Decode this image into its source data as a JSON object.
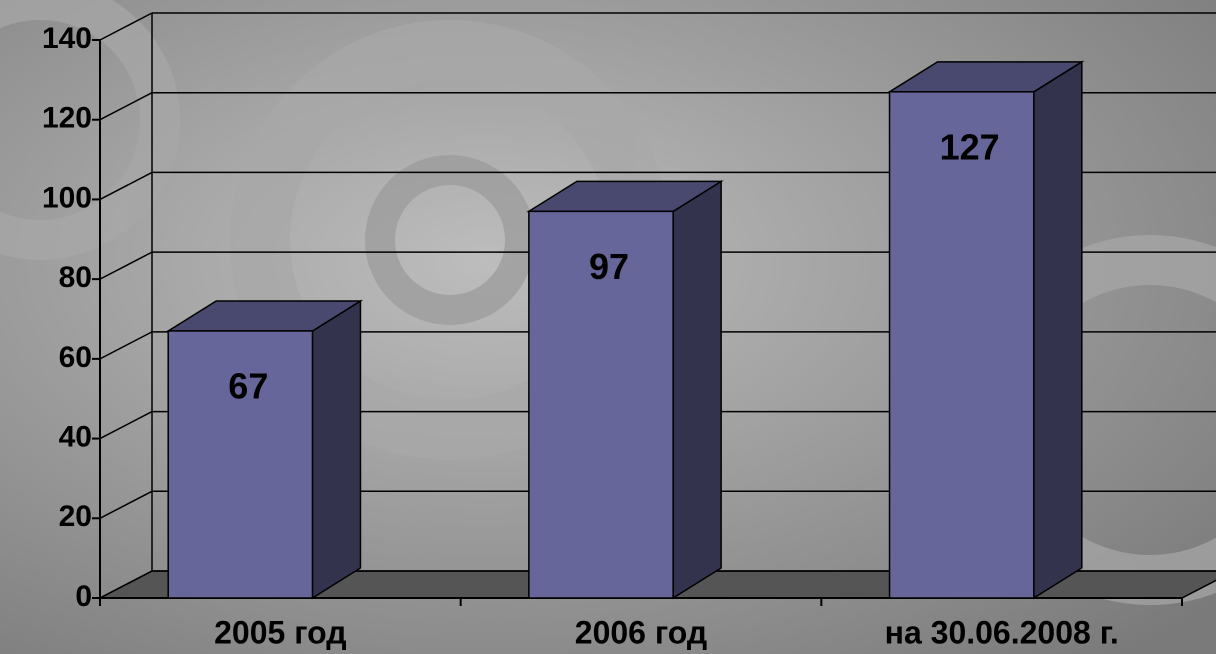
{
  "chart_data": {
    "type": "bar3d",
    "categories": [
      "2005 год",
      "2006 год",
      "на 30.06.2008 г."
    ],
    "values": [
      67,
      97,
      127
    ],
    "color": "#66669a",
    "ylim": [
      0,
      140
    ],
    "yticks": [
      0,
      20,
      40,
      60,
      80,
      100,
      120,
      140
    ],
    "grid": true
  }
}
